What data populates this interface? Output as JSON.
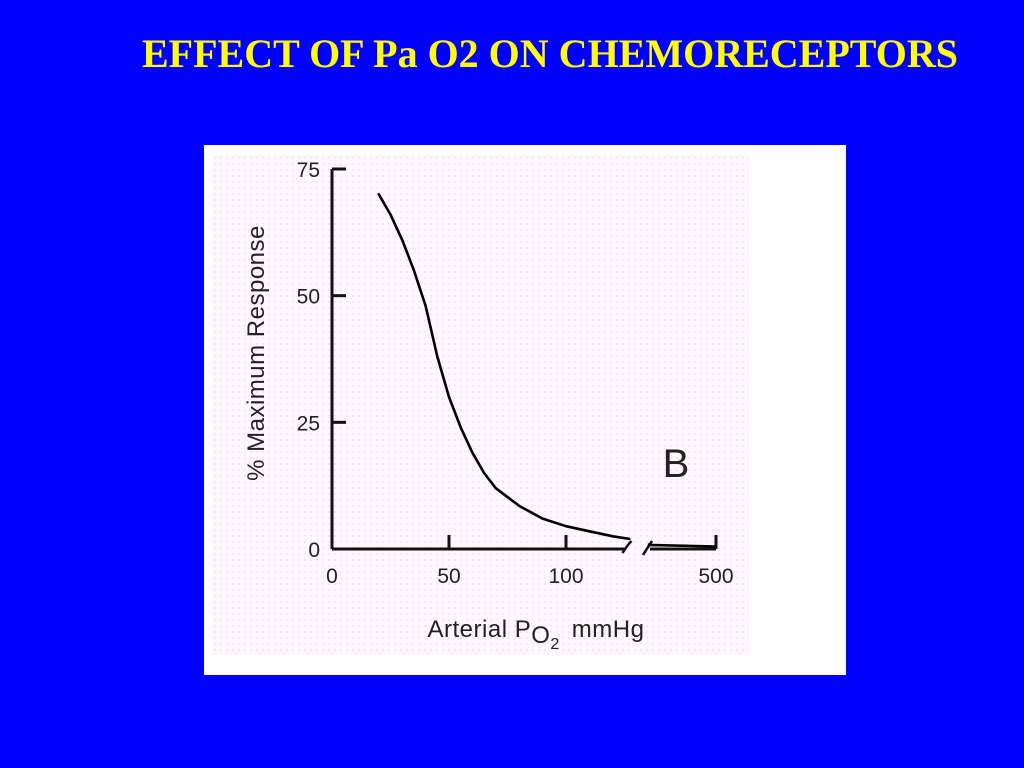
{
  "slide": {
    "title": "EFFECT OF Pa O2 ON CHEMORECEPTORS",
    "background_color": "#0000FF",
    "title_color": "#FFFF00"
  },
  "chart_data": {
    "type": "line",
    "title": "",
    "xlabel": {
      "main": "Arterial P",
      "subscript": "O",
      "sub_subscript": "2",
      "unit": "mmHg"
    },
    "ylabel": "% Maximum Response",
    "panel_label": "B",
    "xlim": [
      0,
      500
    ],
    "ylim": [
      0,
      75
    ],
    "x_axis_break": "between 100 and 500",
    "x_ticks": [
      {
        "value": 0,
        "label": "0"
      },
      {
        "value": 50,
        "label": "50"
      },
      {
        "value": 100,
        "label": "100"
      },
      {
        "value": 500,
        "label": "500"
      }
    ],
    "y_ticks": [
      {
        "value": 0,
        "label": "0"
      },
      {
        "value": 25,
        "label": "25"
      },
      {
        "value": 50,
        "label": "50"
      },
      {
        "value": 75,
        "label": "75"
      }
    ],
    "series": [
      {
        "points": [
          [
            20,
            70
          ],
          [
            25,
            66
          ],
          [
            30,
            61
          ],
          [
            35,
            55
          ],
          [
            40,
            48
          ],
          [
            45,
            38
          ],
          [
            50,
            30
          ],
          [
            55,
            24
          ],
          [
            60,
            19
          ],
          [
            65,
            15
          ],
          [
            70,
            12
          ],
          [
            80,
            8.5
          ],
          [
            90,
            6
          ],
          [
            100,
            4.5
          ],
          [
            110,
            3.5
          ],
          [
            120,
            2.5
          ],
          [
            127,
            2
          ],
          [
            450,
            0.8
          ],
          [
            500,
            0.5
          ]
        ]
      }
    ],
    "grid": false,
    "line_color": "#000000"
  }
}
